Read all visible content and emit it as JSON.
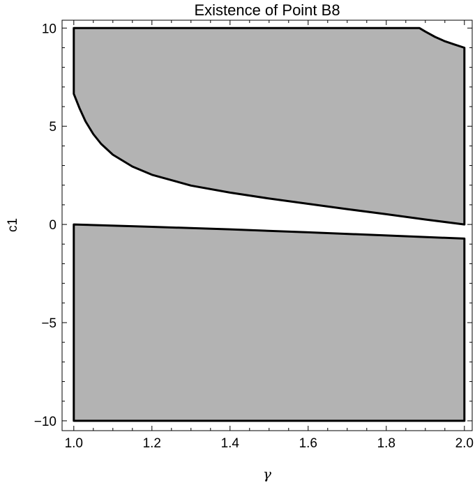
{
  "chart_data": {
    "type": "area",
    "title": "Existence of Point B8",
    "xlabel": "γ",
    "ylabel": "c1",
    "xlim": [
      0.97,
      2.02
    ],
    "ylim": [
      -10.5,
      10.4
    ],
    "x_ticks": [
      1.0,
      1.2,
      1.4,
      1.6,
      1.8,
      2.0
    ],
    "x_tick_labels": [
      "1.0",
      "1.2",
      "1.4",
      "1.6",
      "1.8",
      "2.0"
    ],
    "y_ticks": [
      -10,
      -5,
      0,
      5,
      10
    ],
    "y_tick_labels": [
      "−10",
      "−5",
      "0",
      "5",
      "10"
    ],
    "grid": false,
    "fill_color": "#b3b3b3",
    "edge_color": "#000000",
    "regions": [
      {
        "boundary": [
          [
            1.0,
            10
          ],
          [
            1.885,
            10
          ],
          [
            1.9,
            9.82
          ],
          [
            1.925,
            9.55
          ],
          [
            1.95,
            9.33
          ],
          [
            1.975,
            9.16
          ],
          [
            2.0,
            9.0
          ],
          [
            2.0,
            0
          ],
          [
            1.9,
            0.25
          ],
          [
            1.8,
            0.52
          ],
          [
            1.7,
            0.78
          ],
          [
            1.6,
            1.05
          ],
          [
            1.5,
            1.32
          ],
          [
            1.4,
            1.62
          ],
          [
            1.3,
            1.98
          ],
          [
            1.2,
            2.53
          ],
          [
            1.15,
            2.95
          ],
          [
            1.1,
            3.55
          ],
          [
            1.07,
            4.1
          ],
          [
            1.05,
            4.6
          ],
          [
            1.03,
            5.25
          ],
          [
            1.015,
            5.9
          ],
          [
            1.0,
            6.65
          ],
          [
            1.0,
            10
          ]
        ]
      },
      {
        "boundary": [
          [
            1.0,
            0
          ],
          [
            1.2,
            -0.12
          ],
          [
            1.4,
            -0.25
          ],
          [
            1.6,
            -0.4
          ],
          [
            1.8,
            -0.56
          ],
          [
            2.0,
            -0.72
          ],
          [
            2.0,
            -10
          ],
          [
            1.0,
            -10
          ],
          [
            1.0,
            0
          ]
        ]
      }
    ]
  }
}
